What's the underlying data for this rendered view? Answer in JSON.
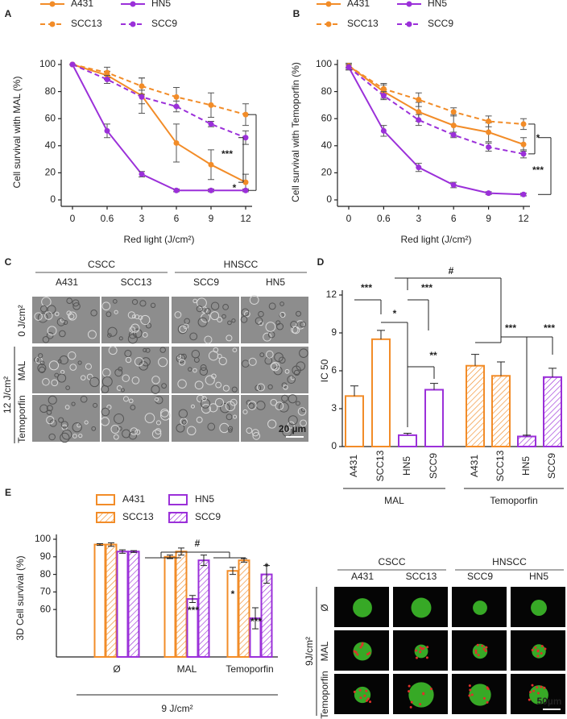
{
  "panel_labels": [
    "A",
    "B",
    "C",
    "D",
    "E"
  ],
  "chart_data": [
    {
      "type": "line",
      "y_label": "Cell survival with MAL (%)",
      "x_label": "Red light (J/cm²)",
      "categories": [
        "0",
        "0.6",
        "3",
        "6",
        "9",
        "12"
      ],
      "ylim": [
        0,
        100
      ],
      "yticks": [
        0,
        20,
        40,
        60,
        80,
        100
      ],
      "series": [
        {
          "name": "A431",
          "color": "#f28c28",
          "linestyle": "solid",
          "values": [
            100,
            92,
            77,
            42,
            26,
            13
          ],
          "errors": [
            0,
            3,
            13,
            14,
            11,
            6
          ]
        },
        {
          "name": "HN5",
          "color": "#9b30d9",
          "linestyle": "solid",
          "values": [
            100,
            51,
            19,
            7,
            7,
            7
          ],
          "errors": [
            0,
            5,
            2,
            1,
            1,
            1
          ]
        },
        {
          "name": "SCC13",
          "color": "#f28c28",
          "linestyle": "dashed",
          "values": [
            100,
            94,
            84,
            76,
            70,
            63
          ],
          "errors": [
            0,
            4,
            6,
            7,
            9,
            8
          ]
        },
        {
          "name": "SCC9",
          "color": "#9b30d9",
          "linestyle": "dashed",
          "values": [
            100,
            89,
            76,
            69,
            56,
            46
          ],
          "errors": [
            0,
            3,
            5,
            4,
            2,
            5
          ]
        }
      ],
      "annotations": [
        "***",
        "*"
      ]
    },
    {
      "type": "line",
      "y_label": "Cell survival with Temoporfin (%)",
      "x_label": "Red light (J/cm²)",
      "categories": [
        "0",
        "0.6",
        "3",
        "6",
        "9",
        "12"
      ],
      "ylim": [
        0,
        100
      ],
      "yticks": [
        0,
        20,
        40,
        60,
        80,
        100
      ],
      "series": [
        {
          "name": "A431",
          "color": "#f28c28",
          "linestyle": "solid",
          "values": [
            99,
            80,
            65,
            55,
            50,
            41
          ],
          "errors": [
            2,
            5,
            7,
            8,
            7,
            5
          ]
        },
        {
          "name": "HN5",
          "color": "#9b30d9",
          "linestyle": "solid",
          "values": [
            98,
            51,
            24,
            11,
            5,
            4
          ],
          "errors": [
            2,
            4,
            3,
            2,
            1,
            1
          ]
        },
        {
          "name": "SCC13",
          "color": "#f28c28",
          "linestyle": "dashed",
          "values": [
            99,
            82,
            74,
            65,
            58,
            56
          ],
          "errors": [
            1,
            4,
            5,
            3,
            4,
            4
          ]
        },
        {
          "name": "SCC9",
          "color": "#9b30d9",
          "linestyle": "dashed",
          "values": [
            98,
            77,
            59,
            48,
            39,
            34
          ],
          "errors": [
            2,
            3,
            4,
            2,
            3,
            3
          ]
        }
      ],
      "annotations": [
        "*",
        "***"
      ]
    },
    {
      "type": "bar",
      "y_label": "IC 50",
      "categories": [
        "A431",
        "SCC13",
        "HN5",
        "SCC9",
        "A431",
        "SCC13",
        "HN5",
        "SCC9"
      ],
      "values": [
        4.0,
        8.5,
        0.9,
        4.5,
        6.4,
        5.6,
        0.8,
        5.5
      ],
      "errors": [
        0.8,
        0.7,
        0.15,
        0.5,
        0.9,
        1.1,
        0.1,
        0.7
      ],
      "colors": [
        "#f28c28",
        "#f28c28",
        "#9b30d9",
        "#9b30d9",
        "#f28c28",
        "#f28c28",
        "#9b30d9",
        "#9b30d9"
      ],
      "hatch": [
        false,
        false,
        false,
        false,
        true,
        true,
        true,
        true
      ],
      "groups": [
        "MAL",
        "Temoporfin"
      ],
      "ylim": [
        0,
        12
      ],
      "yticks": [
        0,
        3,
        6,
        9,
        12
      ],
      "annotations": [
        "***",
        "***",
        "*",
        "**",
        "#",
        "***",
        "***"
      ]
    },
    {
      "type": "grouped_bar",
      "y_label": "3D Cell survival (%)",
      "x_label": "9 J/cm²",
      "categories": [
        "Ø",
        "MAL",
        "Temoporfin"
      ],
      "ylim": [
        33,
        100
      ],
      "yticks": [
        60,
        70,
        80,
        90,
        100
      ],
      "series": [
        {
          "name": "A431",
          "color": "#f28c28",
          "hatch": false,
          "values": [
            97,
            90,
            82
          ],
          "errors": [
            0.5,
            1,
            2
          ]
        },
        {
          "name": "SCC13",
          "color": "#f28c28",
          "hatch": true,
          "values": [
            97,
            93,
            88
          ],
          "errors": [
            1,
            2,
            1
          ]
        },
        {
          "name": "HN5",
          "color": "#9b30d9",
          "hatch": false,
          "values": [
            93,
            66,
            55
          ],
          "errors": [
            1,
            2,
            6
          ]
        },
        {
          "name": "SCC9",
          "color": "#9b30d9",
          "hatch": true,
          "values": [
            93,
            88,
            80
          ],
          "errors": [
            0.5,
            3,
            5
          ]
        }
      ],
      "annotations": [
        "#",
        "***",
        "*",
        "***",
        "*"
      ]
    }
  ],
  "micrographs": {
    "groups": [
      "CSCC",
      "HNSCC"
    ],
    "columns": [
      "A431",
      "SCC13",
      "SCC9",
      "HN5"
    ],
    "rows": [
      "0 J/cm²",
      "MAL",
      "Temoporfin"
    ],
    "dose": "12 J/cm²",
    "scale": "20 µm"
  },
  "spheroids": {
    "groups": [
      "CSCC",
      "HNSCC"
    ],
    "columns": [
      "A431",
      "SCC13",
      "SCC9",
      "HN5"
    ],
    "rows": [
      "Ø",
      "MAL",
      "Temoporfin"
    ],
    "dose": "9J/cm²",
    "scale": "50µm"
  }
}
